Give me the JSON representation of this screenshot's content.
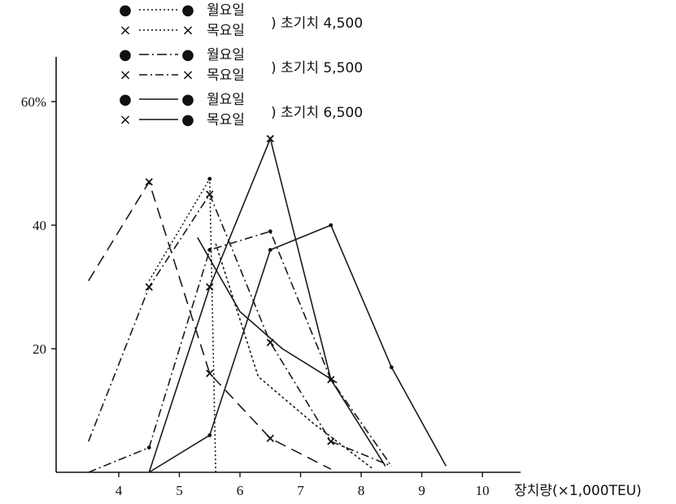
{
  "chart_data": {
    "type": "line",
    "xlabel": "장치량(×1,000TEU)",
    "ylabel": "",
    "xlim": [
      3.0,
      11.0
    ],
    "ylim": [
      0,
      60
    ],
    "x_ticks": [
      "4",
      "5",
      "6",
      "7",
      "8",
      "9",
      "10"
    ],
    "y_ticks": [
      {
        "value": 20,
        "label": "20"
      },
      {
        "value": 40,
        "label": "40"
      },
      {
        "value": 60,
        "label": "60%"
      }
    ],
    "legend": [
      {
        "left_marker": "●",
        "right_marker": "●",
        "day": "월요일",
        "dash": "2,3",
        "group": "초기치 4,500"
      },
      {
        "left_marker": "×",
        "right_marker": "×",
        "day": "목요일",
        "dash": "2,3",
        "group": "초기치 4,500"
      },
      {
        "left_marker": "●",
        "right_marker": "●",
        "day": "월요일",
        "dash": "12,4,2,4",
        "group": "초기치 5,500"
      },
      {
        "left_marker": "×",
        "right_marker": "×",
        "day": "목요일",
        "dash": "10,4,2,4",
        "group": "초기치 5,500"
      },
      {
        "left_marker": "●",
        "right_marker": "●",
        "day": "월요일",
        "dash": "",
        "group": "초기치 6,500"
      },
      {
        "left_marker": "×",
        "right_marker": "●",
        "day": "목요일",
        "dash": "",
        "group": "초기치 6,500"
      }
    ],
    "legend_groups": [
      "초기치 4,500",
      "초기치 5,500",
      "초기치 6,500"
    ],
    "series": [
      {
        "group": "초기치 4,500",
        "marker": "×",
        "dash": "14,8",
        "points": [
          [
            3.5,
            31
          ],
          [
            4.5,
            47
          ],
          [
            5.5,
            16
          ],
          [
            6.5,
            5.5
          ],
          [
            7.5,
            0.5
          ]
        ]
      },
      {
        "group": "초기치 4,500",
        "marker": "●",
        "dash": "2,3",
        "points": [
          [
            4.5,
            31
          ],
          [
            5.5,
            47.5
          ],
          [
            5.6,
            0
          ]
        ]
      },
      {
        "group": "초기치 5,500",
        "marker": "×",
        "dash": "10,4,2,4",
        "points": [
          [
            3.5,
            5
          ],
          [
            4.5,
            30
          ],
          [
            5.5,
            45
          ],
          [
            6.5,
            21
          ],
          [
            7.5,
            5
          ],
          [
            8.5,
            1
          ]
        ]
      },
      {
        "group": "초기치 5,500",
        "marker": "●",
        "dash": "10,4,2,4",
        "points": [
          [
            3.5,
            0
          ],
          [
            4.5,
            4
          ],
          [
            5.5,
            36
          ],
          [
            6.5,
            39
          ],
          [
            7.5,
            15
          ],
          [
            8.5,
            1
          ]
        ]
      },
      {
        "group": "초기치 6,500",
        "marker": "●",
        "dash": "",
        "points": [
          [
            4.5,
            0
          ],
          [
            5.5,
            6
          ],
          [
            6.5,
            36
          ],
          [
            7.5,
            40
          ],
          [
            8.5,
            17
          ],
          [
            9.4,
            1
          ]
        ]
      },
      {
        "group": "초기치 6,500",
        "marker": "×",
        "dash": "",
        "points": [
          [
            4.5,
            0
          ],
          [
            5.5,
            30
          ],
          [
            6.5,
            54
          ],
          [
            7.5,
            15
          ],
          [
            8.4,
            1
          ]
        ]
      },
      {
        "group": "초기치 6,500",
        "marker": "",
        "dash": "",
        "points": [
          [
            5.3,
            38
          ],
          [
            6.0,
            26
          ],
          [
            6.7,
            20
          ],
          [
            7.6,
            14.5
          ]
        ]
      },
      {
        "group": "초기치 6,500",
        "marker": "",
        "dash": "3,3",
        "points": [
          [
            5.6,
            37
          ],
          [
            6.3,
            15.5
          ],
          [
            7.2,
            8
          ],
          [
            8.2,
            0.5
          ]
        ]
      }
    ]
  }
}
